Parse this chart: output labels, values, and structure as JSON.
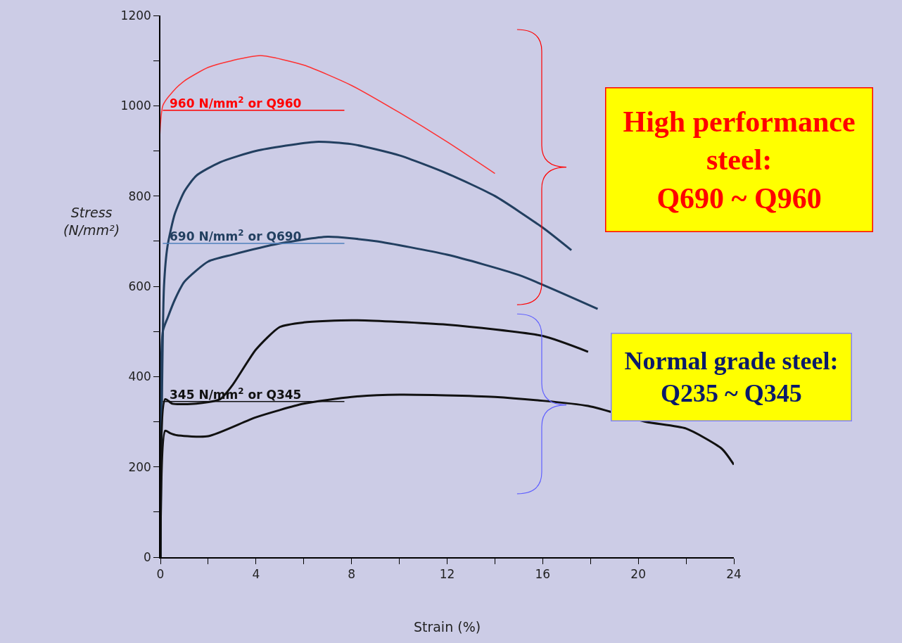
{
  "chart_data": {
    "type": "line",
    "xlabel": "Strain (%)",
    "ylabel": "Stress (N/mm²)",
    "xlim": [
      0,
      24
    ],
    "ylim": [
      0,
      1200
    ],
    "xticks": [
      0,
      {
        "value": 2,
        "label": null
      },
      4,
      {
        "value": 6,
        "label": null
      },
      8,
      {
        "value": 10,
        "label": null
      },
      12,
      {
        "value": 14,
        "label": null
      },
      16,
      {
        "value": 18,
        "label": null
      },
      20,
      {
        "value": 22,
        "label": null
      },
      24
    ],
    "yticks": [
      0,
      {
        "value": 100,
        "label": null
      },
      200,
      {
        "value": 300,
        "label": null
      },
      400,
      {
        "value": 500,
        "label": null
      },
      600,
      {
        "value": 700,
        "label": null
      },
      800,
      {
        "value": 900,
        "label": null
      },
      1000,
      {
        "value": 1100,
        "label": null
      },
      1200
    ],
    "grid": false,
    "marker": "none",
    "line_style": "solid",
    "series": [
      {
        "color": "#ff3030",
        "x": [
          0,
          0.1,
          0.5,
          1,
          2,
          3,
          4.2,
          6,
          8,
          10,
          12,
          14
        ],
        "values": [
          0,
          1000,
          1030,
          1055,
          1085,
          1100,
          1111,
          1090,
          1045,
          985,
          920,
          850
        ]
      },
      {
        "color": "#223f60",
        "x": [
          0,
          0.15,
          0.3,
          0.6,
          1,
          1.5,
          2.5,
          4,
          6.5,
          8,
          10,
          12,
          14,
          16,
          17.2
        ],
        "values": [
          0,
          600,
          690,
          760,
          810,
          845,
          875,
          900,
          920,
          915,
          890,
          850,
          800,
          730,
          680
        ]
      },
      {
        "color": "#223f60",
        "x": [
          0,
          0.1,
          0.3,
          0.6,
          1,
          2,
          3,
          5,
          7,
          9,
          12,
          15,
          18.3
        ],
        "values": [
          0,
          500,
          530,
          570,
          610,
          655,
          670,
          695,
          710,
          700,
          670,
          625,
          550
        ]
      },
      {
        "color": "#111111",
        "x": [
          0,
          0.2,
          0.5,
          1.5,
          2.5,
          3,
          4,
          5,
          6,
          8,
          12,
          16,
          17.9
        ],
        "values": [
          0,
          350,
          340,
          340,
          350,
          380,
          460,
          510,
          520,
          525,
          515,
          490,
          455
        ]
      },
      {
        "color": "#111111",
        "x": [
          0,
          0.2,
          0.4,
          0.7,
          2,
          4,
          6,
          8,
          10,
          14,
          17.9,
          20.3,
          22,
          23.5,
          24
        ],
        "values": [
          0,
          280,
          275,
          270,
          268,
          310,
          340,
          355,
          360,
          355,
          335,
          300,
          285,
          240,
          205
        ]
      },
      {
        "name": "960 N/mm$^{2}$ or Q960",
        "color": "#ff0000",
        "x": [
          0.1,
          7.7
        ],
        "values": [
          990,
          990
        ]
      },
      {
        "name": "690 N/mm$^{2}$ or Q690",
        "color": "#4f81bd",
        "x": [
          0.1,
          7.7
        ],
        "values": [
          695,
          695
        ]
      },
      {
        "name": "345 N/mm$^{2}$ or Q345",
        "color": "#111111",
        "x": [
          0.1,
          7.7
        ],
        "values": [
          345,
          345
        ]
      }
    ],
    "annotations": [
      "High performance steel: Q690 ~ Q960",
      "Normal grade steel: Q235 ~ Q345"
    ]
  }
}
